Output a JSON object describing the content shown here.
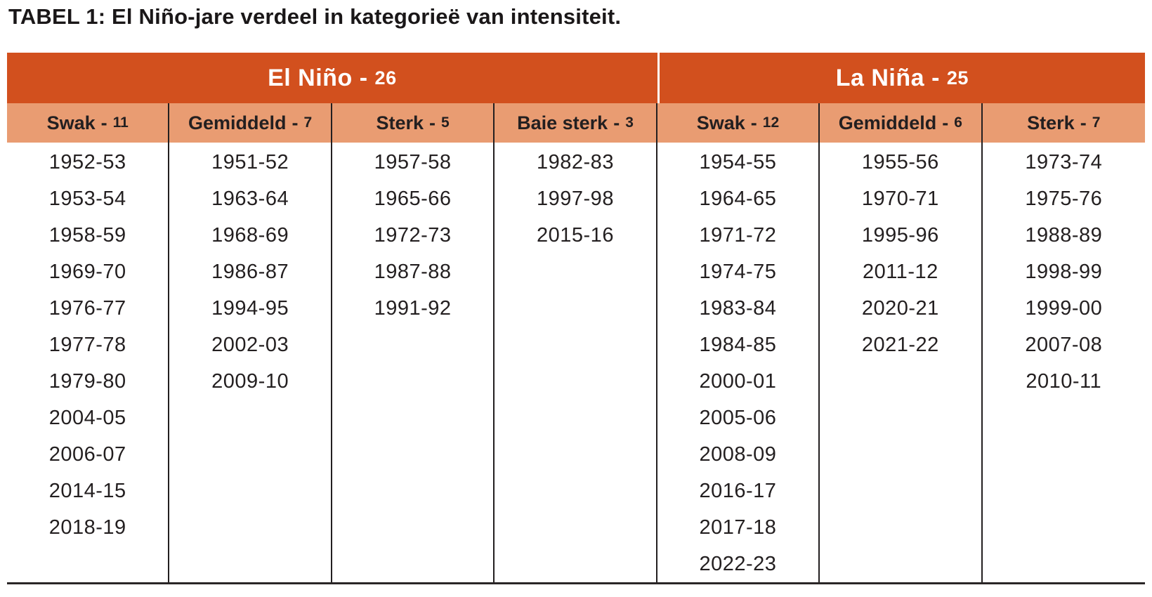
{
  "title": "TABEL 1: El Niño-jare verdeel in kategorieë van intensiteit.",
  "separator": "-",
  "colors": {
    "header_bg": "#D2501E",
    "subheader_bg": "#E99C72",
    "header_text": "#FFFFFF",
    "body_text": "#231F20",
    "rule": "#231F20"
  },
  "chart_data": {
    "type": "table",
    "title": "TABEL 1: El Niño-jare verdeel in kategorieë van intensiteit.",
    "groups": [
      {
        "label": "El Niño",
        "count": "26",
        "columns": [
          {
            "label": "Swak",
            "count": "11",
            "years": [
              "1952-53",
              "1953-54",
              "1958-59",
              "1969-70",
              "1976-77",
              "1977-78",
              "1979-80",
              "2004-05",
              "2006-07",
              "2014-15",
              "2018-19"
            ]
          },
          {
            "label": "Gemiddeld",
            "count": "7",
            "years": [
              "1951-52",
              "1963-64",
              "1968-69",
              "1986-87",
              "1994-95",
              "2002-03",
              "2009-10"
            ]
          },
          {
            "label": "Sterk",
            "count": "5",
            "years": [
              "1957-58",
              "1965-66",
              "1972-73",
              "1987-88",
              "1991-92"
            ]
          },
          {
            "label": "Baie sterk",
            "count": "3",
            "years": [
              "1982-83",
              "1997-98",
              "2015-16"
            ]
          }
        ]
      },
      {
        "label": "La Niña",
        "count": "25",
        "columns": [
          {
            "label": "Swak",
            "count": "12",
            "years": [
              "1954-55",
              "1964-65",
              "1971-72",
              "1974-75",
              "1983-84",
              "1984-85",
              "2000-01",
              "2005-06",
              "2008-09",
              "2016-17",
              "2017-18",
              "2022-23"
            ]
          },
          {
            "label": "Gemiddeld",
            "count": "6",
            "years": [
              "1955-56",
              "1970-71",
              "1995-96",
              "2011-12",
              "2020-21",
              "2021-22"
            ]
          },
          {
            "label": "Sterk",
            "count": "7",
            "years": [
              "1973-74",
              "1975-76",
              "1988-89",
              "1998-99",
              "1999-00",
              "2007-08",
              "2010-11"
            ]
          }
        ]
      }
    ]
  }
}
